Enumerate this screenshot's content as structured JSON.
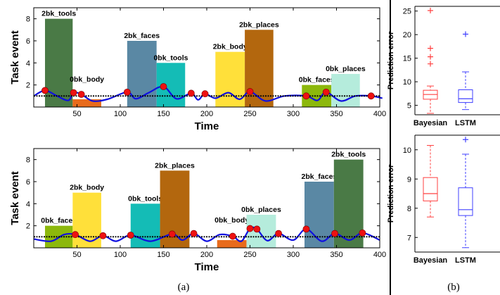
{
  "chart_data": [
    {
      "type": "bar",
      "panel": "(a)",
      "xlabel": "Time",
      "ylabel": "Task event",
      "xlim": [
        0,
        400
      ],
      "ylim": [
        0,
        9
      ],
      "xticks": [
        50,
        100,
        150,
        200,
        250,
        300,
        350,
        400
      ],
      "yticks": [
        2,
        4,
        6,
        8
      ],
      "threshold": 1,
      "events": [
        {
          "label": "2bk_tools",
          "start": 13,
          "end": 45,
          "height": 8,
          "color": "#4a7a46"
        },
        {
          "label": "0bk_body",
          "start": 45,
          "end": 78,
          "height": 0.7,
          "color": "#e86b1c"
        },
        {
          "label": "2bk_faces",
          "start": 108,
          "end": 142,
          "height": 6,
          "color": "#5a88a4"
        },
        {
          "label": "0bk_tools",
          "start": 142,
          "end": 175,
          "height": 4,
          "color": "#14bcb6"
        },
        {
          "label": "2bk_body",
          "start": 210,
          "end": 244,
          "height": 5,
          "color": "#ffe03a"
        },
        {
          "label": "2bk_places",
          "start": 244,
          "end": 277,
          "height": 7,
          "color": "#b3670e"
        },
        {
          "label": "0bk_faces",
          "start": 310,
          "end": 344,
          "height": 2,
          "color": "#8cb80c"
        },
        {
          "label": "0bk_places",
          "start": 344,
          "end": 377,
          "height": 3,
          "color": "#b5ecdc"
        }
      ],
      "predicted_points": {
        "x": [
          13,
          46,
          55,
          108,
          150,
          182,
          198,
          250,
          315,
          338,
          390
        ],
        "y": [
          1.5,
          1.3,
          1.15,
          1.35,
          1.85,
          1.25,
          1.2,
          1.4,
          1.0,
          1.35,
          1.0
        ]
      },
      "wave_anchor_points": {
        "x": [
          0,
          13,
          27,
          40,
          46,
          55,
          68,
          85,
          108,
          118,
          133,
          150,
          165,
          182,
          190,
          198,
          210,
          225,
          238,
          250,
          268,
          290,
          315,
          328,
          338,
          355,
          372,
          390,
          403
        ],
        "y": [
          1.0,
          1.5,
          1.0,
          0.6,
          1.3,
          1.15,
          0.55,
          0.7,
          1.35,
          0.75,
          1.3,
          1.85,
          0.75,
          1.25,
          0.65,
          1.2,
          0.8,
          1.3,
          0.7,
          1.4,
          0.55,
          1.0,
          1.0,
          0.6,
          1.35,
          0.55,
          1.0,
          1.0,
          0.8
        ]
      }
    },
    {
      "type": "bar",
      "panel": "(a)",
      "xlabel": "Time",
      "ylabel": "Task event",
      "xlim": [
        0,
        400
      ],
      "ylim": [
        0,
        9
      ],
      "xticks": [
        50,
        100,
        150,
        200,
        250,
        300,
        350,
        400
      ],
      "yticks": [
        2,
        4,
        6,
        8
      ],
      "threshold": 1,
      "events": [
        {
          "label": "0bk_faces",
          "start": 13,
          "end": 45,
          "height": 2,
          "color": "#8cb80c"
        },
        {
          "label": "2bk_body",
          "start": 45,
          "end": 78,
          "height": 5,
          "color": "#ffe03a"
        },
        {
          "label": "0bk_tools",
          "start": 112,
          "end": 146,
          "height": 4,
          "color": "#14bcb6"
        },
        {
          "label": "2bk_places",
          "start": 146,
          "end": 180,
          "height": 7,
          "color": "#b3670e"
        },
        {
          "label": "0bk_body",
          "start": 212,
          "end": 246,
          "height": 0.7,
          "color": "#e86b1c"
        },
        {
          "label": "0bk_places",
          "start": 246,
          "end": 280,
          "height": 3,
          "color": "#b5ecdc"
        },
        {
          "label": "2bk_faces",
          "start": 313,
          "end": 347,
          "height": 6,
          "color": "#5a88a4"
        },
        {
          "label": "2bk_tools",
          "start": 347,
          "end": 381,
          "height": 8,
          "color": "#4a7a46"
        }
      ],
      "predicted_points": {
        "x": [
          48,
          80,
          112,
          160,
          185,
          230,
          250,
          258,
          283,
          315,
          348,
          380
        ],
        "y": [
          1.2,
          1.1,
          1.15,
          1.25,
          1.3,
          1.05,
          1.75,
          1.7,
          1.3,
          1.7,
          1.3,
          1.35
        ]
      },
      "wave_anchor_points": {
        "x": [
          0,
          20,
          35,
          48,
          65,
          80,
          95,
          112,
          135,
          160,
          172,
          185,
          200,
          215,
          230,
          240,
          250,
          258,
          270,
          283,
          300,
          315,
          333,
          348,
          365,
          380,
          400
        ],
        "y": [
          0.8,
          0.6,
          1.2,
          1.2,
          0.6,
          1.1,
          0.6,
          1.15,
          0.6,
          1.25,
          0.7,
          1.3,
          0.6,
          1.2,
          1.05,
          0.6,
          1.75,
          1.7,
          0.65,
          1.3,
          0.7,
          1.7,
          0.6,
          1.3,
          0.7,
          1.35,
          0.7
        ]
      }
    },
    {
      "type": "box",
      "panel": "(b)",
      "ylabel": "Prediction error",
      "categories": [
        "Bayesian",
        "LSTM"
      ],
      "ylim": [
        3,
        26
      ],
      "yticks": [
        5,
        10,
        15,
        20,
        25
      ],
      "series": [
        {
          "name": "Bayesian",
          "color": "#ff4040",
          "whisker_low": 3.3,
          "q1": 6.3,
          "median": 7.3,
          "q3": 8.2,
          "whisker_high": 9.1,
          "outliers": [
            13.8,
            15.3,
            17.1,
            25.1
          ]
        },
        {
          "name": "LSTM",
          "color": "#4040ff",
          "whisker_low": 4.1,
          "q1": 5.6,
          "median": 6.4,
          "q3": 8.3,
          "whisker_high": 12.1,
          "outliers": [
            20.1
          ]
        }
      ]
    },
    {
      "type": "box",
      "panel": "(b)",
      "ylabel": "Prediction error",
      "categories": [
        "Bayesian",
        "LSTM"
      ],
      "ylim": [
        6.5,
        10.5
      ],
      "yticks": [
        7,
        8,
        9,
        10
      ],
      "series": [
        {
          "name": "Bayesian",
          "color": "#ff4040",
          "whisker_low": 7.7,
          "q1": 8.25,
          "median": 8.5,
          "q3": 9.05,
          "whisker_high": 10.15,
          "outliers": []
        },
        {
          "name": "LSTM",
          "color": "#4040ff",
          "whisker_low": 6.65,
          "q1": 7.75,
          "median": 7.95,
          "q3": 8.7,
          "whisker_high": 9.85,
          "outliers": [
            10.35
          ]
        }
      ]
    }
  ],
  "captions": {
    "left": "(a)",
    "right": "(b)"
  }
}
